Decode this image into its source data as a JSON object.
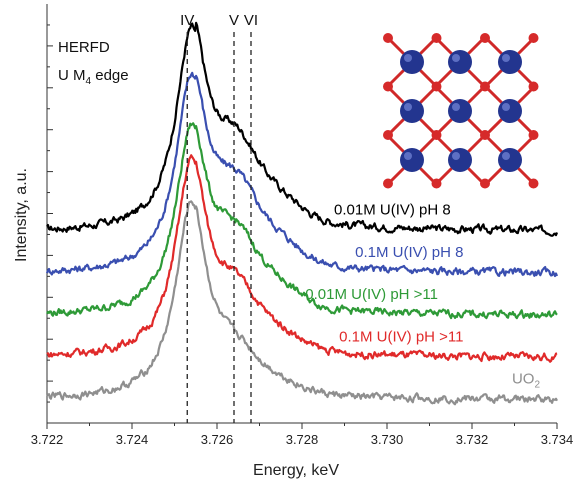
{
  "chart_data": {
    "type": "line",
    "title": "",
    "xlabel": "Energy, keV",
    "ylabel": "Intensity, a.u.",
    "xlim": [
      3.722,
      3.734
    ],
    "x_ticks": [
      "3.722",
      "3.724",
      "3.726",
      "3.728",
      "3.730",
      "3.732",
      "3.734"
    ],
    "y_ticks_labeled": false,
    "grid": false,
    "annotation": {
      "line1": "HERFD",
      "line2_prefix": "U M",
      "line2_sub": "4",
      "line2_suffix": " edge"
    },
    "reference_lines": [
      {
        "label": "IV",
        "x": 3.7253
      },
      {
        "label": "V",
        "x": 3.7264
      },
      {
        "label": "VI",
        "x": 3.7268
      }
    ],
    "inset": "crystal-structure-image",
    "series": [
      {
        "name": "0.01M U(IV) pH 8",
        "color": "#000000",
        "baseline": 4.55,
        "peak_height": 4.8,
        "shoulder_height": 2.1,
        "tail_level": 0.25,
        "label_text": "0.01M U(IV) pH 8",
        "label_sub": "",
        "label_x": 3.7315
      },
      {
        "name": "0.1M U(IV) pH 8",
        "color": "#3a4fb0",
        "baseline": 3.55,
        "peak_height": 4.7,
        "shoulder_height": 2.1,
        "tail_level": 0.2,
        "label_text": "0.1M U(IV) pH 8",
        "label_sub": "",
        "label_x": 3.7318
      },
      {
        "name": "0.01M U(IV) pH >11",
        "color": "#2e9a37",
        "baseline": 2.55,
        "peak_height": 4.5,
        "shoulder_height": 1.9,
        "tail_level": 0.15,
        "label_text": "0.01M U(IV) pH >11",
        "label_sub": "",
        "label_x": 3.7312
      },
      {
        "name": "0.1M U(IV) pH >11",
        "color": "#e02a2a",
        "baseline": 1.55,
        "peak_height": 4.7,
        "shoulder_height": 1.6,
        "tail_level": 0.1,
        "label_text": "0.1M U(IV) pH >11",
        "label_sub": "",
        "label_x": 3.7318
      },
      {
        "name": "UO2",
        "color": "#8f8f8f",
        "baseline": 0.55,
        "peak_height": 4.7,
        "shoulder_height": 1.1,
        "tail_level": 0.05,
        "label_text": "UO",
        "label_sub": "2",
        "label_x": 3.7336
      }
    ]
  }
}
